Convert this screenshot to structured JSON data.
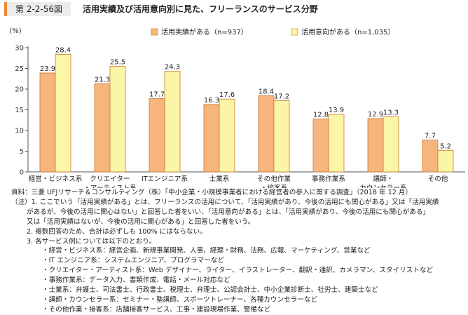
{
  "header": {
    "figure_no": "第 2-2-56図",
    "title": "活用実績及び活用意向別に見た、フリーランスのサービス分野"
  },
  "colors": {
    "accent": "#ea8c35",
    "series_1": "#f6b57d",
    "series_2": "#fbf5a6",
    "bar_stroke": "#c8772f"
  },
  "chart_data": {
    "type": "bar",
    "unit_label": "(%)",
    "ylim": [
      0,
      30
    ],
    "yticks": [
      0,
      5,
      10,
      15,
      20,
      25,
      30
    ],
    "grid": false,
    "legend_position": "top-right",
    "categories": [
      [
        "経営・ビジネス系"
      ],
      [
        "クリエイター",
        "・アーティスト系"
      ],
      [
        "ITエンジニア系"
      ],
      [
        "士業系"
      ],
      [
        "その他作業",
        "・接客系"
      ],
      [
        "事務作業系"
      ],
      [
        "講師・",
        "カウンセラー系"
      ],
      [
        "その他"
      ]
    ],
    "series": [
      {
        "name": "活用実績がある（n=937）",
        "values": [
          23.9,
          21.3,
          17.7,
          16.3,
          18.4,
          12.8,
          12.9,
          7.7
        ]
      },
      {
        "name": "活用意向がある（n=1,035）",
        "values": [
          28.4,
          25.5,
          24.3,
          17.6,
          17.2,
          13.9,
          13.3,
          5.2
        ]
      }
    ]
  },
  "notes": {
    "source": "資料：三菱 UFJリサーチ＆コンサルティング（株）「中小企業・小規模事業者における経営者の参入に関する調査」（2018 年 12 月）",
    "note1_a": "（注）1. ここでいう「活用実績がある」とは、フリーランスの活用について、「活用実績があり、今後の活用にも関心がある」又は「活用実績",
    "note1_b": "があるが、今後の活用に関心はない」と回答した者をいい、「活用意向がある」とは、「活用実績があり、今後の活用にも関心がある」",
    "note1_c": "又は「活用実績はないが、今後の活用に関心がある」と回答した者をいう。",
    "note2": "2. 複数回答のため、合計は必ずしも 100% にはならない。",
    "note3": "3. 各サービス例については以下のとおり。",
    "ex1": "・経営・ビジネス系：経営企画、新規事業開発、人事、経理・財務、法務、広報、マーケティング、営業など",
    "ex2": "・IT エンジニア系：システムエンジニア、プログラマーなど",
    "ex3": "・クリエイター・アーティスト系：Web デザイナー、ライター、イラストレーター、翻訳・通訳、カメラマン、スタイリストなど",
    "ex4": "・事務作業系：データ入力、書類作成、電話・メール対応など",
    "ex5": "・士業系：弁護士、司法書士、行政書士、税理士、弁理士、公認会計士、中小企業診断士、社労士、建築士など",
    "ex6": "・講師・カウンセラー系：セミナー・塾講師、スポーツトレーナー、各種カウンセラーなど",
    "ex7": "・その他作業・接客系：店舗接客サービス、工事・建設現場作業、警備など"
  }
}
